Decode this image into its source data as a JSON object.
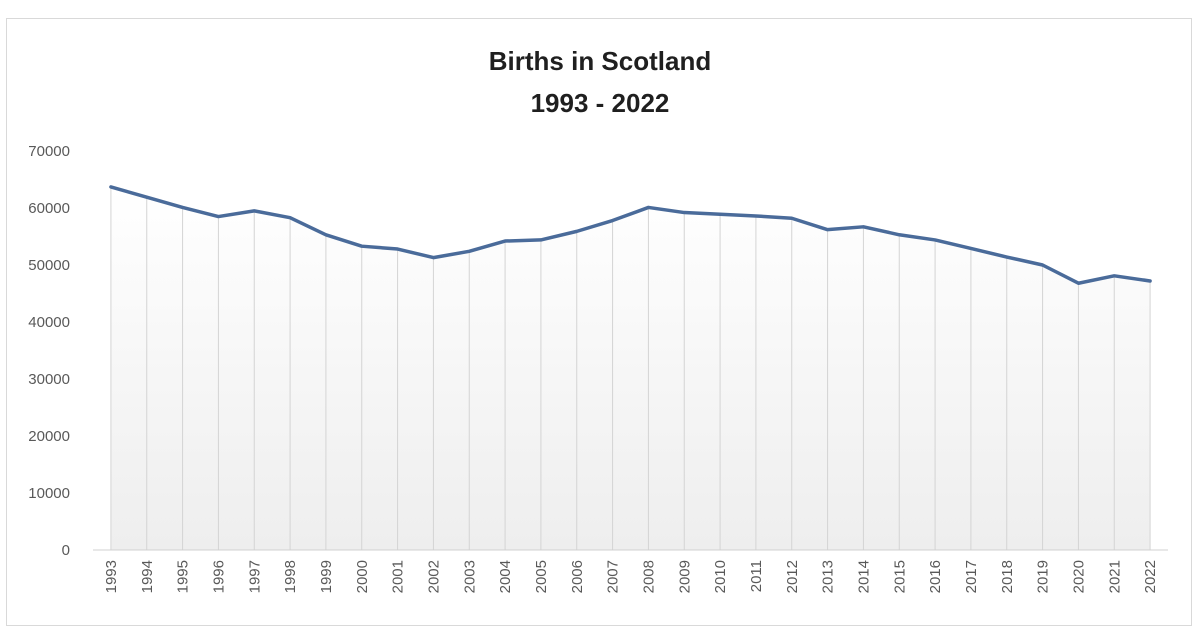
{
  "chart_data": {
    "type": "area",
    "title_lines": [
      "Births in Scotland",
      "1993 - 2022"
    ],
    "xlabel": "",
    "ylabel": "",
    "x": [
      "1993",
      "1994",
      "1995",
      "1996",
      "1997",
      "1998",
      "1999",
      "2000",
      "2001",
      "2002",
      "2003",
      "2004",
      "2005",
      "2006",
      "2007",
      "2008",
      "2009",
      "2010",
      "2011",
      "2012",
      "2013",
      "2014",
      "2015",
      "2016",
      "2017",
      "2018",
      "2019",
      "2020",
      "2021",
      "2022"
    ],
    "series": [
      {
        "values": [
          63700,
          61900,
          60100,
          58500,
          59500,
          58300,
          55300,
          53300,
          52800,
          51300,
          52400,
          54200,
          54400,
          55900,
          57800,
          60100,
          59200,
          58900,
          58600,
          58200,
          56200,
          56700,
          55300,
          54400,
          52900,
          51400,
          50000,
          46800,
          48100,
          47200
        ],
        "color": "#4a6b9a"
      }
    ],
    "ylim": [
      0,
      70000
    ],
    "yticks": [
      0,
      10000,
      20000,
      30000,
      40000,
      50000,
      60000,
      70000
    ],
    "ytick_labels": [
      "0",
      "10000",
      "20000",
      "30000",
      "40000",
      "50000",
      "60000",
      "70000"
    ],
    "grid": "vertical drop lines",
    "legend": "none"
  }
}
